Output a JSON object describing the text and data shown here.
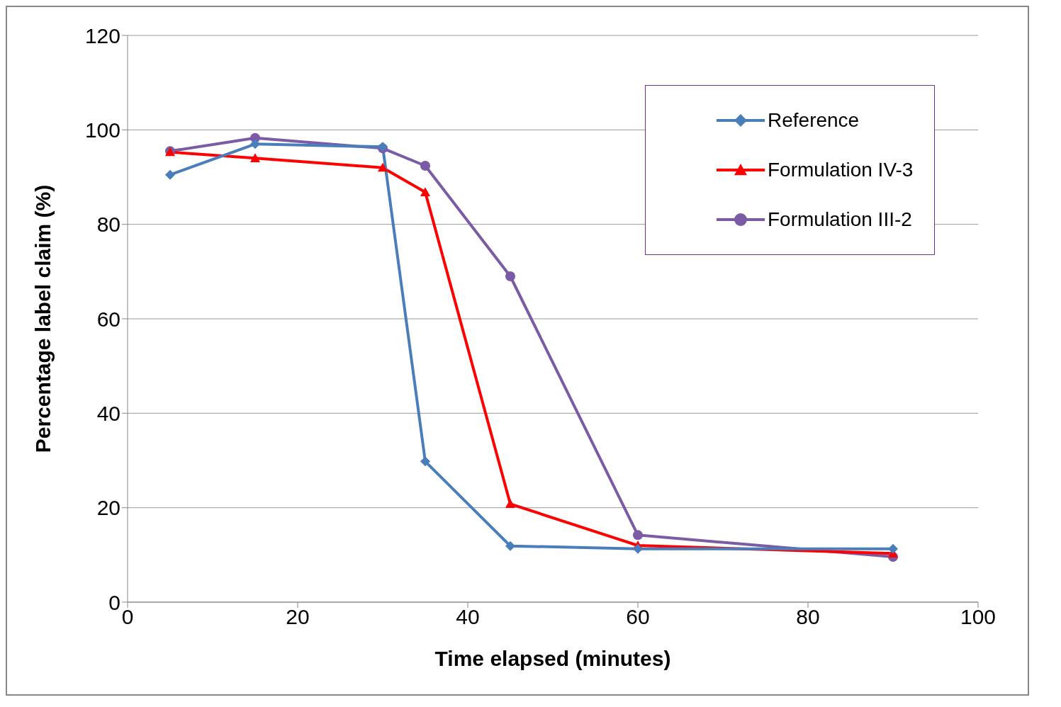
{
  "chart_data": {
    "type": "line",
    "xlabel": "Time elapsed (minutes)",
    "ylabel": "Percentage label claim (%)",
    "xlim": [
      0,
      100
    ],
    "xticks": [
      0,
      20,
      40,
      60,
      80,
      100
    ],
    "ylim": [
      0,
      120
    ],
    "yticks": [
      0,
      20,
      40,
      60,
      80,
      100,
      120
    ],
    "grid": "y",
    "legend": "top right",
    "x": [
      5,
      15,
      30,
      35,
      45,
      60,
      90
    ],
    "series": [
      {
        "name": "Reference",
        "color": "#4a7ebb",
        "marker": "diamond",
        "values": [
          90.5,
          97,
          96.4,
          29.8,
          11.9,
          11.3,
          11.3
        ]
      },
      {
        "name": "Formulation IV-3",
        "color": "#ff0000",
        "marker": "triangle",
        "values": [
          95.3,
          94,
          92,
          86.8,
          20.8,
          12,
          10.3
        ]
      },
      {
        "name": "Formulation III-2",
        "color": "#7b5aa6",
        "marker": "circle",
        "values": [
          95.5,
          98.3,
          96.1,
          92.4,
          69,
          14.2,
          9.6
        ]
      }
    ]
  }
}
